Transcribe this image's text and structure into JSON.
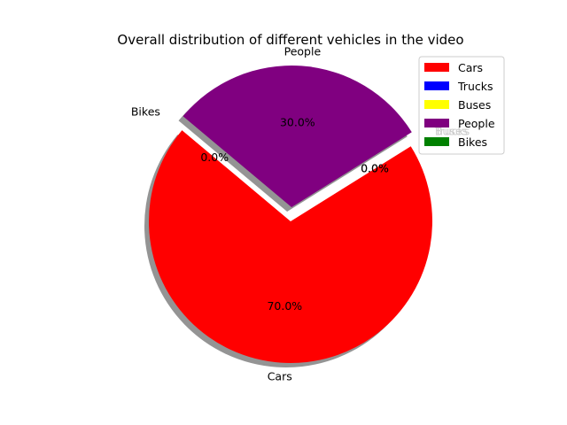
{
  "chart_data": {
    "type": "pie",
    "title": "Overall distribution of different vehicles in the video",
    "categories": [
      "Cars",
      "Trucks",
      "Buses",
      "People",
      "Bikes"
    ],
    "values": [
      70,
      0,
      0,
      30,
      0
    ],
    "percent_labels": [
      "70.0%",
      "0.0%",
      "0.0%",
      "30.0%",
      "0.0%"
    ],
    "colors": [
      "#ff0000",
      "#0000ff",
      "#ffff00",
      "#800080",
      "#008000"
    ],
    "start_angle_deg": 140,
    "exploded": [
      "Trucks",
      "Buses",
      "People",
      "Bikes"
    ],
    "shadow": true,
    "legend_position": "upper right"
  }
}
